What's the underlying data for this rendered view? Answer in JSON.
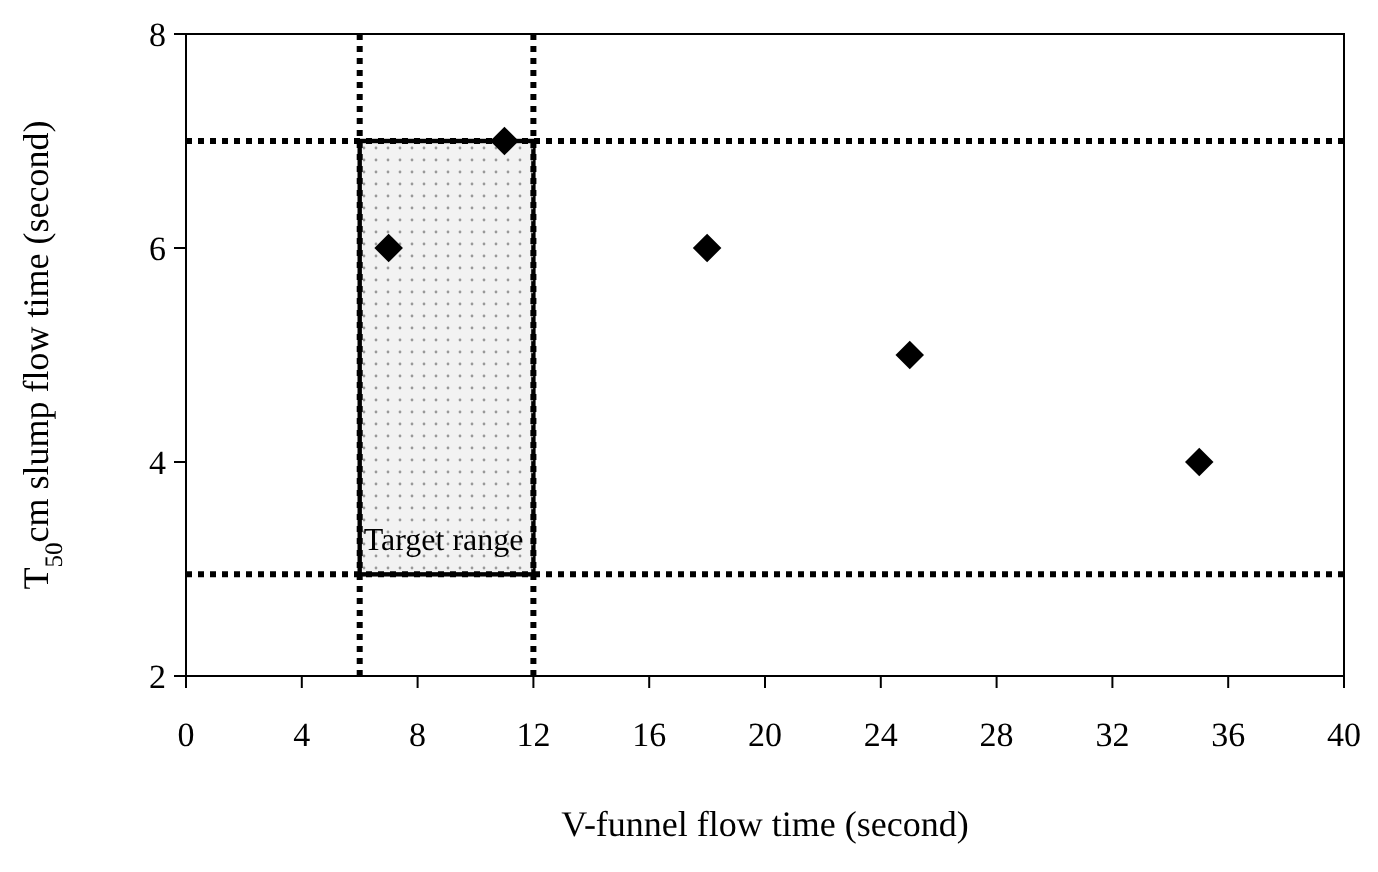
{
  "chart_data": {
    "type": "scatter",
    "xlabel": "V-funnel flow time (second)",
    "ylabel": "T$_{50}$cm slump flow time (second)",
    "x": [
      7,
      11,
      18,
      25,
      35
    ],
    "values": [
      6,
      7,
      6,
      5,
      4
    ],
    "color": "#000000",
    "marker": "diamond",
    "xlim": [
      0,
      40
    ],
    "xticks": [
      0,
      4,
      8,
      12,
      16,
      20,
      24,
      28,
      32,
      36,
      40
    ],
    "ylim": [
      2,
      8
    ],
    "yticks": [
      2,
      4,
      6,
      8
    ],
    "ref_lines": [
      {
        "axis": "x",
        "value": 6,
        "line_style": "dotted"
      },
      {
        "axis": "x",
        "value": 12,
        "line_style": "dotted"
      },
      {
        "axis": "y",
        "value": 7,
        "line_style": "dotted"
      },
      {
        "axis": "y",
        "value": 2.95,
        "line_style": "dotted"
      }
    ],
    "bands": [
      {
        "axis": "x",
        "from": 6,
        "to": 12,
        "label": "Target range",
        "color": "#d9d9d9"
      }
    ],
    "grid": false
  }
}
